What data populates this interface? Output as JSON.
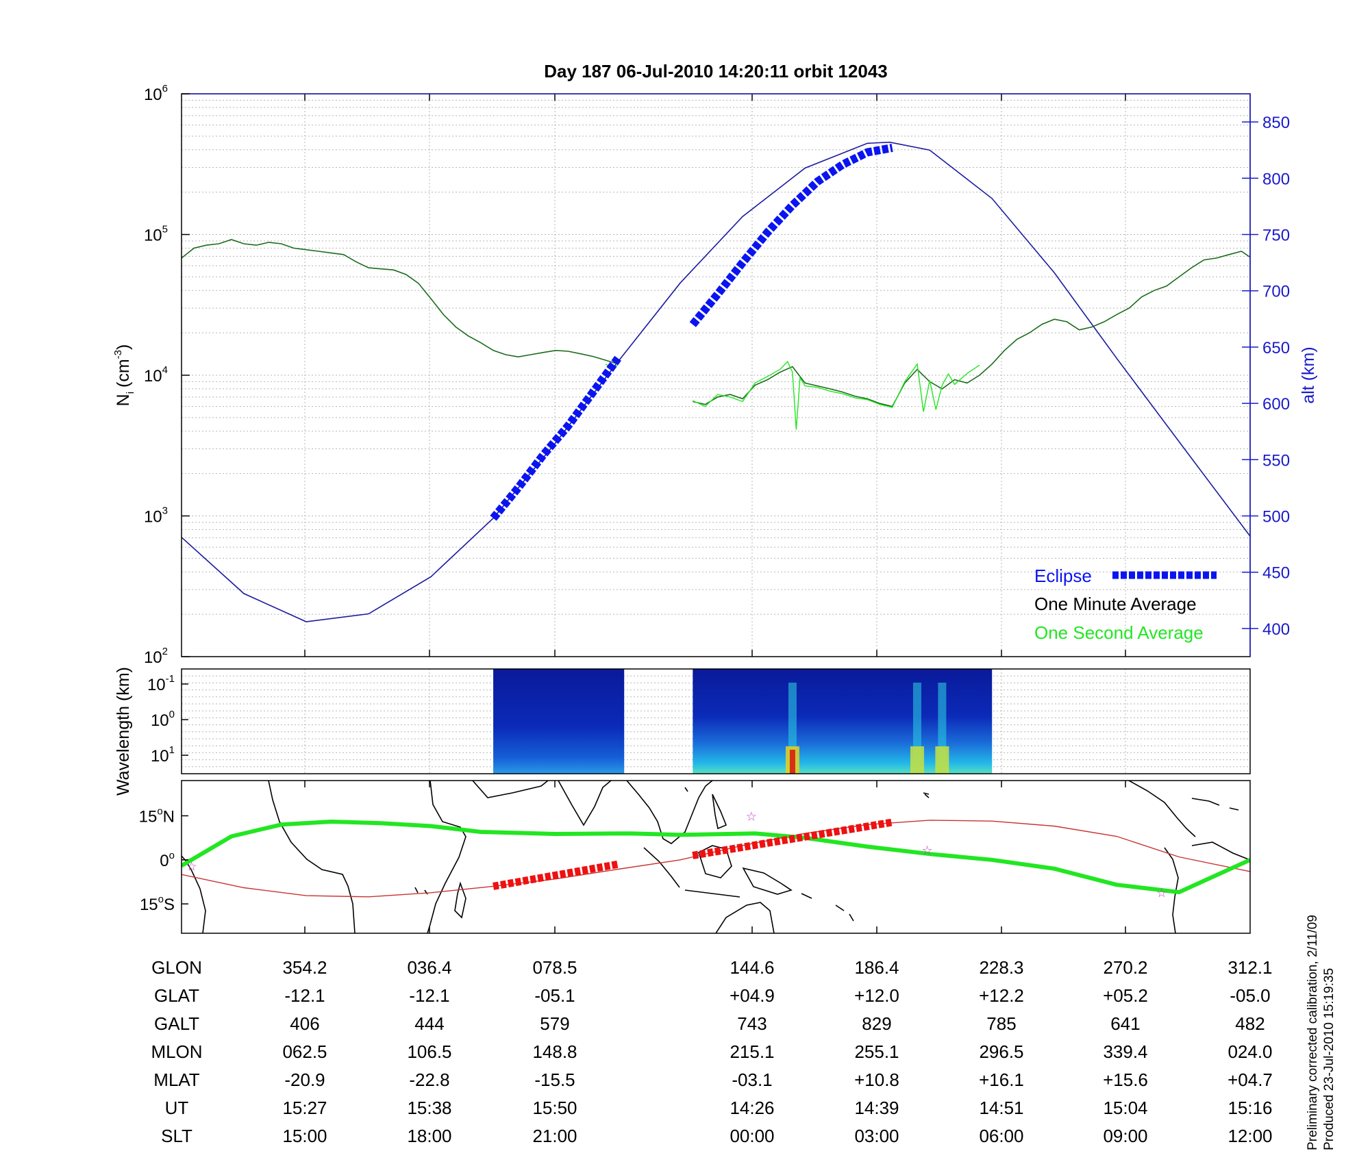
{
  "title": "Day 187  06-Jul-2010 14:20:11   orbit 12043",
  "chart_data": [
    {
      "type": "line",
      "panel": "density-altitude",
      "yscale": "log",
      "ylim": [
        100,
        1000000
      ],
      "ylabel_left": "N",
      "ylabel_left_sub": "i",
      "ylabel_left_unit": "(cm",
      "ylabel_left_unit_sup": "-3",
      "ylabel_left_unit_close": ")",
      "y_ticks_left": [
        {
          "base": "10",
          "exp": "2",
          "value": 100
        },
        {
          "base": "10",
          "exp": "3",
          "value": 1000
        },
        {
          "base": "10",
          "exp": "4",
          "value": 10000
        },
        {
          "base": "10",
          "exp": "5",
          "value": 100000
        },
        {
          "base": "10",
          "exp": "6",
          "value": 1000000
        }
      ],
      "ylabel_right": "alt (km)",
      "ylim_right": [
        375,
        875
      ],
      "y_ticks_right": [
        "400",
        "450",
        "500",
        "550",
        "600",
        "650",
        "700",
        "750",
        "800",
        "850"
      ],
      "x_unit": "minutes from start of plot (column ticks at 10, 20, 30, 45.7, 55.7, 65.7, 75.7, 85.7)",
      "xlim": [
        0,
        85.7
      ],
      "series": [
        {
          "name": "One Minute Average",
          "color": "#1a6b1a",
          "segments": [
            {
              "x": [
                0,
                1,
                2,
                3,
                4,
                5,
                6,
                7,
                8,
                9,
                10,
                11,
                12,
                13,
                14,
                15,
                16,
                17,
                18,
                19,
                20,
                21,
                22,
                23,
                24,
                25,
                26,
                27,
                28,
                29,
                30,
                31,
                32,
                33,
                34,
                35
              ],
              "y": [
                68000,
                80000,
                84000,
                86000,
                92000,
                86000,
                84000,
                88000,
                86000,
                80000,
                78000,
                76000,
                74000,
                72000,
                64000,
                58000,
                57000,
                56000,
                52000,
                45000,
                35000,
                27000,
                22000,
                19000,
                17000,
                15000,
                14000,
                13500,
                14000,
                14500,
                15000,
                14800,
                14200,
                13600,
                12800,
                12000
              ]
            },
            {
              "x": [
                41,
                42,
                43,
                44,
                45,
                46,
                47,
                48,
                49,
                50,
                51,
                52,
                53,
                54,
                55,
                56,
                57,
                58,
                59,
                60,
                61,
                62,
                63,
                64,
                65,
                66,
                67,
                68,
                69,
                70,
                71,
                72,
                73,
                74,
                75,
                76,
                77,
                78,
                79,
                80,
                81,
                82,
                83,
                84,
                85,
                85.7
              ],
              "y": [
                6500,
                6200,
                7000,
                7300,
                6800,
                8500,
                9300,
                10500,
                11500,
                8800,
                8400,
                8000,
                7600,
                7100,
                6800,
                6300,
                6000,
                8800,
                11000,
                9000,
                8000,
                9300,
                8800,
                10000,
                12000,
                15000,
                18000,
                20000,
                23000,
                25000,
                24000,
                21000,
                22000,
                24000,
                27000,
                30000,
                36000,
                40000,
                43000,
                50000,
                58000,
                66000,
                68000,
                72000,
                76000,
                69000
              ]
            }
          ]
        },
        {
          "name": "One Second Average",
          "color": "#22e622",
          "segments": [
            {
              "x": [
                34,
                34.6,
                35
              ],
              "y": [
                12000,
                11200,
                11800
              ]
            },
            {
              "x": [
                41,
                42,
                43,
                44,
                45,
                46,
                47,
                48,
                48.6,
                49,
                49.3,
                49.6,
                50,
                51,
                52,
                53,
                54,
                55,
                56,
                57,
                58,
                59,
                59.5,
                60,
                60.5,
                61,
                61.5,
                62,
                63,
                64
              ],
              "y": [
                6600,
                6000,
                7300,
                7000,
                6500,
                8800,
                9800,
                11000,
                12500,
                10500,
                4100,
                9600,
                8400,
                8200,
                7700,
                7400,
                6900,
                6700,
                6200,
                5900,
                9000,
                12000,
                5500,
                9200,
                5700,
                8500,
                10200,
                8600,
                10300,
                11800
              ]
            }
          ]
        },
        {
          "name": "alt",
          "axis": "right",
          "color": "#1a1aa0",
          "x": [
            0,
            5,
            10,
            15,
            20,
            25,
            30,
            35,
            40,
            45,
            50,
            55,
            56.8,
            60,
            65,
            70,
            75,
            80,
            85.7
          ],
          "y": [
            481,
            431,
            406,
            413,
            446,
            498,
            565,
            637,
            707,
            766,
            809,
            831,
            832,
            825,
            782,
            716,
            640,
            566,
            482
          ]
        },
        {
          "name": "Eclipse",
          "axis": "right",
          "color": "#0a14f0",
          "style": "thick-dash",
          "segments": [
            {
              "x": [
                25,
                27,
                29,
                31,
                33,
                35
              ],
              "y": [
                498,
                525,
                554,
                580,
                610,
                640
              ]
            },
            {
              "x": [
                41,
                43,
                45,
                47,
                49,
                51,
                53,
                55,
                57
              ],
              "y": [
                670,
                697,
                725,
                752,
                776,
                797,
                812,
                823,
                827
              ]
            }
          ]
        }
      ],
      "legend": {
        "placement": "bottom-right",
        "items": [
          "Eclipse",
          "One Minute Average",
          "One Second Average"
        ]
      }
    },
    {
      "type": "heatmap",
      "panel": "wavelength-spectrogram",
      "ylabel": "Wavelength (km)",
      "yscale": "log",
      "y_ticks": [
        {
          "base": "10",
          "exp": "-1"
        },
        {
          "base": "10",
          "exp": "0"
        },
        {
          "base": "10",
          "exp": "1"
        }
      ],
      "colormap": "jet",
      "data_spans_minutes": [
        [
          25,
          35.5
        ],
        [
          41,
          65
        ]
      ],
      "hot_spots_minutes": [
        49,
        59,
        61
      ]
    },
    {
      "type": "line",
      "panel": "ground-track-map",
      "y_ticks": [
        {
          "value": "15",
          "sup": "o",
          "suffix": "N"
        },
        {
          "value": "0",
          "sup": "o",
          "suffix": ""
        },
        {
          "value": "15",
          "sup": "o",
          "suffix": "S"
        }
      ],
      "ylim": [
        -25,
        27
      ],
      "series": [
        {
          "name": "track",
          "color": "#c83232",
          "x": [
            0,
            5,
            10,
            15,
            20,
            25,
            30,
            35,
            40,
            45,
            50,
            55,
            60,
            65,
            70,
            75,
            80,
            85.7
          ],
          "y": [
            -5,
            -9.5,
            -12.2,
            -12.6,
            -11.2,
            -9,
            -6.5,
            -3.2,
            0,
            4.9,
            9,
            12,
            13.5,
            13.2,
            11.5,
            8,
            1,
            -4
          ]
        },
        {
          "name": "eclipse-track",
          "color": "#ee1111",
          "segments": [
            {
              "x": [
                25,
                35
              ],
              "y": [
                -9,
                -1.5
              ]
            },
            {
              "x": [
                41,
                57
              ],
              "y": [
                1.5,
                12.8
              ]
            }
          ]
        },
        {
          "name": "magnetic-equator",
          "color": "#22e622",
          "x": [
            0,
            4,
            8,
            12,
            16,
            20,
            24,
            30,
            36,
            40,
            46,
            50,
            55,
            60,
            65,
            70,
            75,
            80,
            85.7
          ],
          "y": [
            -2,
            8,
            12,
            13,
            12.5,
            11.5,
            9.5,
            8.8,
            9,
            8.5,
            9,
            7.5,
            4.5,
            2,
            0,
            -3,
            -8.5,
            -11,
            0
          ]
        }
      ],
      "stars_minutes": [
        [
          0.8,
          -2
        ],
        [
          45.7,
          15
        ],
        [
          59.8,
          3.5
        ],
        [
          78.6,
          -11
        ]
      ]
    }
  ],
  "table": {
    "rows": [
      {
        "label": "GLON",
        "values": [
          "354.2",
          "036.4",
          "078.5",
          "144.6",
          "186.4",
          "228.3",
          "270.2",
          "312.1"
        ]
      },
      {
        "label": "GLAT",
        "values": [
          "-12.1",
          "-12.1",
          "-05.1",
          "+04.9",
          "+12.0",
          "+12.2",
          "+05.2",
          "-05.0"
        ]
      },
      {
        "label": "GALT",
        "values": [
          "406",
          "444",
          "579",
          "743",
          "829",
          "785",
          "641",
          "482"
        ]
      },
      {
        "label": "MLON",
        "values": [
          "062.5",
          "106.5",
          "148.8",
          "215.1",
          "255.1",
          "296.5",
          "339.4",
          "024.0"
        ]
      },
      {
        "label": "MLAT",
        "values": [
          "-20.9",
          "-22.8",
          "-15.5",
          "-03.1",
          "+10.8",
          "+16.1",
          "+15.6",
          "+04.7"
        ]
      },
      {
        "label": "UT",
        "values": [
          "15:27",
          "15:38",
          "15:50",
          "14:26",
          "14:39",
          "14:51",
          "15:04",
          "15:16"
        ]
      },
      {
        "label": "SLT",
        "values": [
          "15:00",
          "18:00",
          "21:00",
          "00:00",
          "03:00",
          "06:00",
          "09:00",
          "12:00"
        ]
      }
    ]
  },
  "notes": {
    "line1": "Preliminary corrected calibration, 2/11/09",
    "line2": "Produced 23-Jul-2010 15:19:35"
  },
  "colors": {
    "eclipse": "#0a14f0",
    "minute_avg": "#1a6b1a",
    "second_avg": "#22e622",
    "altitude": "#1a1aa0",
    "track": "#c83232",
    "eclipse_track": "#ee1111",
    "right_axis": "#1a1acc"
  }
}
